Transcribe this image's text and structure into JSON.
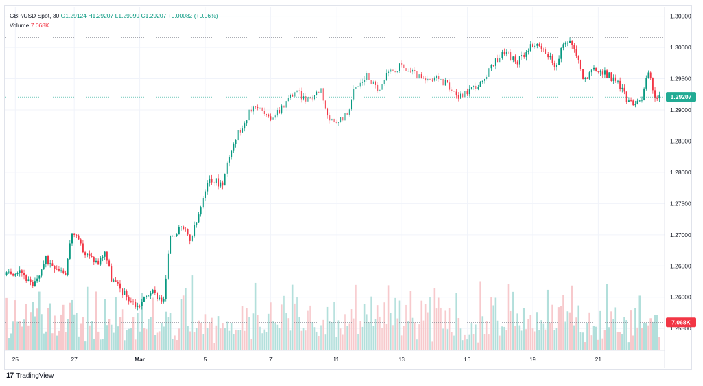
{
  "legend": {
    "symbol": "GBP/USD Spot, 30",
    "open": "O1.29124",
    "high": "H1.29207",
    "low": "L1.29099",
    "close": "C1.29207",
    "change": "+0.00082 (+0.06%)",
    "volume_label": "Volume",
    "volume_value": "7.068K"
  },
  "brand": {
    "name": "TradingView"
  },
  "chart_data": {
    "type": "candlestick",
    "symbol": "GBP/USD Spot",
    "interval": "30",
    "y_ticks": [
      "1.30500",
      "1.30000",
      "1.29500",
      "1.29000",
      "1.28500",
      "1.28000",
      "1.27500",
      "1.27000",
      "1.26500",
      "1.26000",
      "1.25500"
    ],
    "y_tick_values": [
      1.305,
      1.3,
      1.295,
      1.29,
      1.285,
      1.28,
      1.275,
      1.27,
      1.265,
      1.26,
      1.255
    ],
    "ylim": [
      1.2515,
      1.3065
    ],
    "x_ticks": [
      "25",
      "27",
      "Mar",
      "5",
      "7",
      "11",
      "13",
      "16",
      "19",
      "21"
    ],
    "x_tick_index": [
      1,
      10,
      20,
      30,
      40,
      50,
      60,
      70,
      80,
      90
    ],
    "bar_count": 100,
    "last_price": "1.29207",
    "last_price_value": 1.29207,
    "high_marker_value": 1.3016,
    "last_volume": "7.068K",
    "volume_marker_fraction": 0.37,
    "close_path": [
      [
        0,
        1.2635
      ],
      [
        2,
        1.2645
      ],
      [
        4,
        1.2615
      ],
      [
        6,
        1.266
      ],
      [
        9,
        1.264
      ],
      [
        10,
        1.2705
      ],
      [
        12,
        1.267
      ],
      [
        14,
        1.2655
      ],
      [
        15,
        1.2675
      ],
      [
        16,
        1.263
      ],
      [
        18,
        1.2605
      ],
      [
        20,
        1.2585
      ],
      [
        22,
        1.261
      ],
      [
        24,
        1.2595
      ],
      [
        25,
        1.27
      ],
      [
        27,
        1.271
      ],
      [
        28,
        1.269
      ],
      [
        29,
        1.272
      ],
      [
        31,
        1.279
      ],
      [
        33,
        1.278
      ],
      [
        34,
        1.283
      ],
      [
        35,
        1.2855
      ],
      [
        37,
        1.2895
      ],
      [
        38,
        1.291
      ],
      [
        40,
        1.2885
      ],
      [
        42,
        1.2905
      ],
      [
        44,
        1.293
      ],
      [
        46,
        1.2915
      ],
      [
        48,
        1.2935
      ],
      [
        49,
        1.289
      ],
      [
        50,
        1.2875
      ],
      [
        52,
        1.2895
      ],
      [
        53,
        1.293
      ],
      [
        55,
        1.2955
      ],
      [
        57,
        1.293
      ],
      [
        58,
        1.2955
      ],
      [
        60,
        1.297
      ],
      [
        62,
        1.296
      ],
      [
        64,
        1.2945
      ],
      [
        66,
        1.295
      ],
      [
        68,
        1.2935
      ],
      [
        69,
        1.292
      ],
      [
        71,
        1.2935
      ],
      [
        73,
        1.2945
      ],
      [
        74,
        1.297
      ],
      [
        76,
        1.2995
      ],
      [
        78,
        1.2975
      ],
      [
        79,
        1.299
      ],
      [
        80,
        1.3005
      ],
      [
        82,
        1.2995
      ],
      [
        84,
        1.297
      ],
      [
        85,
        1.3005
      ],
      [
        86,
        1.301
      ],
      [
        87,
        1.299
      ],
      [
        88,
        1.295
      ],
      [
        90,
        1.2965
      ],
      [
        92,
        1.2955
      ],
      [
        94,
        1.2935
      ],
      [
        95,
        1.291
      ],
      [
        97,
        1.292
      ],
      [
        98,
        1.296
      ],
      [
        99,
        1.2921
      ]
    ],
    "colors": {
      "up": "#089981",
      "down": "#f23645",
      "vol_up": "#b2dfdb",
      "vol_down": "#f7c9cc",
      "grid": "#f0f3fa",
      "last_price_bg": "#22ab94",
      "volume_tag_bg": "#f23645"
    }
  }
}
